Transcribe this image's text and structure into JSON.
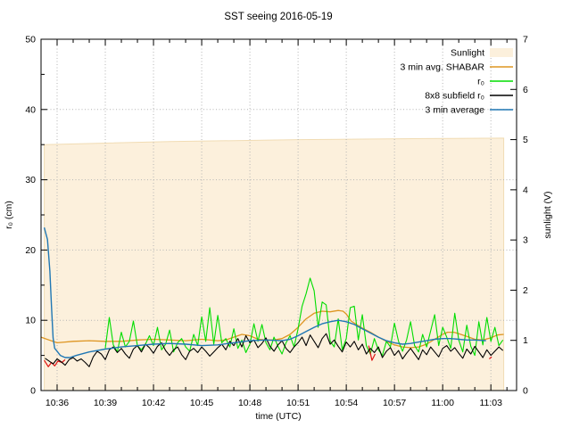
{
  "title": "SST seeing 2016-05-19",
  "chart_data": {
    "type": "line",
    "title": "SST seeing 2016-05-19",
    "xlabel": "time (UTC)",
    "ylabel_left": "r₀ (cm)",
    "ylabel_right": "sunlight (V)",
    "x_unit": "minutes after 10:35 UTC",
    "xlim": [
      0,
      29.6
    ],
    "ylim_left": [
      0,
      50
    ],
    "ylim_right": [
      0,
      7
    ],
    "yticks_left": [
      0,
      10,
      20,
      30,
      40,
      50
    ],
    "yticks_left_minor": [
      5,
      15,
      25,
      35,
      45
    ],
    "yticks_right": [
      0,
      1,
      2,
      3,
      4,
      5,
      6,
      7
    ],
    "x_ticks": [
      [
        1,
        "10:36"
      ],
      [
        4,
        "10:39"
      ],
      [
        7,
        "10:42"
      ],
      [
        10,
        "10:45"
      ],
      [
        13,
        "10:48"
      ],
      [
        16,
        "10:51"
      ],
      [
        19,
        "10:54"
      ],
      [
        22,
        "10:57"
      ],
      [
        25,
        "11:00"
      ],
      [
        28,
        "11:03"
      ]
    ],
    "grid": {
      "horizontal_at_left_ticks": [
        10,
        20,
        30,
        40
      ],
      "vertical_at_major_x": true
    },
    "colors": {
      "sunlight_fill": "#fcf0dc",
      "sunlight_edge": "#f1dcb4",
      "shabar": "#de9521",
      "r0": "#00dd00",
      "subfield": "#000000",
      "avg3min": "#1f77b4",
      "red_marks": "#e01212",
      "grid": "#b4b4b4",
      "axis": "#000000"
    },
    "legend": [
      {
        "label": "Sunlight",
        "type": "fill",
        "color_key": "sunlight_fill"
      },
      {
        "label": "3 min avg. SHABAR",
        "type": "line",
        "color_key": "shabar"
      },
      {
        "label": "r₀",
        "type": "line",
        "color_key": "r0"
      },
      {
        "label": "8x8 subfield r₀",
        "type": "line",
        "color_key": "subfield"
      },
      {
        "label": "3 min average",
        "type": "line",
        "color_key": "avg3min"
      }
    ],
    "series": {
      "sunlight": {
        "name": "Sunlight",
        "axis": "right",
        "style": "filled-area",
        "points": [
          [
            0.2,
            4.9
          ],
          [
            4,
            4.93
          ],
          [
            8,
            4.96
          ],
          [
            12,
            4.98
          ],
          [
            16,
            5.0
          ],
          [
            20,
            5.01
          ],
          [
            24,
            5.02
          ],
          [
            28.8,
            5.03
          ]
        ]
      },
      "shabar_avg": {
        "name": "3 min avg. SHABAR",
        "axis": "left",
        "style": "line",
        "points": [
          [
            0,
            7.6
          ],
          [
            0.5,
            7.2
          ],
          [
            1,
            6.8
          ],
          [
            1.5,
            6.9
          ],
          [
            2,
            7.0
          ],
          [
            3,
            7.1
          ],
          [
            4,
            7.0
          ],
          [
            5,
            7.0
          ],
          [
            6,
            7.2
          ],
          [
            7,
            7.3
          ],
          [
            8,
            7.2
          ],
          [
            9,
            7.1
          ],
          [
            10,
            7.3
          ],
          [
            11,
            7.1
          ],
          [
            11.5,
            7.2
          ],
          [
            12,
            7.6
          ],
          [
            12.5,
            8.0
          ],
          [
            13,
            7.8
          ],
          [
            13.5,
            7.3
          ],
          [
            14,
            7.2
          ],
          [
            14.5,
            7.2
          ],
          [
            15,
            7.4
          ],
          [
            15.5,
            8.0
          ],
          [
            16,
            9.0
          ],
          [
            16.5,
            10.2
          ],
          [
            17,
            11.0
          ],
          [
            17.5,
            11.3
          ],
          [
            18,
            11.2
          ],
          [
            18.5,
            11.4
          ],
          [
            18.8,
            11.3
          ],
          [
            19,
            10.9
          ],
          [
            19.3,
            9.9
          ],
          [
            19.7,
            9.3
          ],
          [
            20,
            8.9
          ],
          [
            20.5,
            8.3
          ],
          [
            21,
            7.6
          ],
          [
            21.5,
            7.0
          ],
          [
            22,
            6.5
          ],
          [
            22.5,
            6.2
          ],
          [
            23,
            6.1
          ],
          [
            23.5,
            6.2
          ],
          [
            24,
            6.6
          ],
          [
            24.5,
            7.3
          ],
          [
            25,
            8.0
          ],
          [
            25.3,
            8.3
          ],
          [
            25.7,
            8.3
          ],
          [
            26,
            8.1
          ],
          [
            26.5,
            7.7
          ],
          [
            27,
            7.3
          ],
          [
            27.5,
            7.2
          ],
          [
            28,
            7.5
          ],
          [
            28.4,
            7.9
          ],
          [
            28.8,
            8.0
          ]
        ]
      },
      "r0": {
        "name": "r₀",
        "axis": "left",
        "style": "line",
        "t_start": 4.0,
        "t_step": 0.25,
        "values": [
          6.0,
          10.4,
          6.5,
          5.5,
          8.3,
          6.2,
          7.0,
          9.9,
          6.4,
          5.8,
          6.6,
          7.8,
          6.4,
          9.0,
          5.8,
          6.6,
          8.6,
          5.5,
          6.8,
          7.4,
          6.2,
          5.6,
          8.0,
          6.4,
          10.5,
          7.0,
          11.8,
          6.6,
          10.7,
          6.8,
          7.4,
          6.2,
          8.8,
          6.0,
          7.2,
          5.4,
          6.6,
          9.5,
          7.0,
          9.4,
          6.8,
          5.8,
          7.6,
          6.3,
          5.2,
          6.8,
          7.8,
          6.2,
          8.8,
          12.0,
          13.8,
          16.0,
          14.2,
          9.0,
          12.6,
          12.2,
          7.0,
          6.2,
          10.2,
          5.8,
          7.4,
          11.8,
          12.0,
          7.2,
          10.8,
          6.4,
          5.2,
          7.4,
          5.8,
          5.0,
          7.0,
          6.2,
          9.6,
          7.0,
          5.6,
          7.2,
          9.8,
          6.4,
          5.5,
          8.0,
          6.2,
          8.5,
          10.8,
          6.4,
          9.0,
          7.6,
          6.0,
          11.0,
          7.2,
          5.5,
          9.3,
          6.3,
          5.0,
          9.8,
          6.5,
          10.4,
          7.0,
          9.0,
          6.4,
          7.2
        ]
      },
      "r0_8x8": {
        "name": "8x8 subfield r₀",
        "axis": "left",
        "style": "line",
        "t_start": 0.25,
        "t_step": 0.25,
        "values": [
          4.6,
          4.2,
          3.8,
          4.5,
          4.1,
          3.6,
          4.4,
          4.7,
          4.2,
          4.5,
          4.0,
          3.4,
          4.8,
          5.6,
          5.2,
          4.4,
          5.8,
          6.2,
          5.4,
          6.0,
          5.2,
          4.6,
          5.9,
          6.4,
          5.5,
          6.6,
          6.1,
          5.3,
          6.3,
          6.8,
          5.7,
          5.0,
          5.8,
          6.2,
          5.1,
          4.4,
          5.6,
          6.0,
          5.4,
          6.2,
          5.6,
          4.9,
          5.5,
          6.1,
          6.6,
          5.8,
          7.0,
          6.4,
          7.4,
          6.2,
          7.8,
          6.8,
          7.2,
          6.1,
          6.7,
          7.5,
          6.3,
          5.6,
          6.5,
          7.1,
          6.0,
          5.4,
          6.2,
          6.8,
          7.6,
          6.4,
          7.9,
          7.0,
          6.1,
          7.4,
          8.1,
          6.6,
          7.2,
          6.3,
          5.5,
          6.9,
          6.2,
          7.0,
          5.8,
          6.6,
          5.2,
          6.0,
          5.4,
          6.2,
          4.7,
          5.6,
          6.1,
          5.0,
          5.7,
          4.5,
          5.3,
          6.0,
          5.2,
          4.4,
          5.8,
          5.1,
          6.2,
          5.5,
          4.8,
          6.0,
          6.4,
          5.6,
          6.1,
          5.3,
          4.6,
          5.9,
          5.2,
          6.3,
          5.5,
          4.7,
          5.8,
          5.0,
          5.6,
          6.2,
          5.7
        ]
      },
      "avg3min": {
        "name": "3 min average",
        "axis": "left",
        "style": "line",
        "points": [
          [
            0.2,
            23.2
          ],
          [
            0.4,
            21.5
          ],
          [
            0.55,
            17.0
          ],
          [
            0.65,
            12.0
          ],
          [
            0.75,
            7.5
          ],
          [
            0.85,
            6.0
          ],
          [
            1.0,
            5.6
          ],
          [
            1.2,
            5.0
          ],
          [
            1.5,
            4.7
          ],
          [
            1.8,
            4.7
          ],
          [
            2.2,
            5.0
          ],
          [
            3,
            5.5
          ],
          [
            4,
            5.9
          ],
          [
            5,
            6.2
          ],
          [
            6,
            6.4
          ],
          [
            7,
            6.6
          ],
          [
            8,
            6.7
          ],
          [
            9,
            6.6
          ],
          [
            10,
            6.4
          ],
          [
            11,
            6.5
          ],
          [
            12,
            6.8
          ],
          [
            13,
            7.1
          ],
          [
            14,
            7.2
          ],
          [
            15,
            7.1
          ],
          [
            15.5,
            7.3
          ],
          [
            16,
            7.8
          ],
          [
            16.5,
            8.4
          ],
          [
            17,
            9.0
          ],
          [
            17.5,
            9.5
          ],
          [
            18,
            9.8
          ],
          [
            18.5,
            10.0
          ],
          [
            19,
            9.8
          ],
          [
            19.5,
            9.4
          ],
          [
            20,
            8.8
          ],
          [
            20.5,
            8.2
          ],
          [
            21,
            7.6
          ],
          [
            21.5,
            7.1
          ],
          [
            22,
            6.8
          ],
          [
            22.5,
            6.6
          ],
          [
            23,
            6.7
          ],
          [
            23.5,
            6.9
          ],
          [
            24,
            7.1
          ],
          [
            24.5,
            7.3
          ],
          [
            25,
            7.4
          ],
          [
            25.5,
            7.4
          ],
          [
            26,
            7.3
          ],
          [
            26.5,
            7.2
          ],
          [
            27,
            7.2
          ],
          [
            27.7,
            7.1
          ]
        ]
      },
      "red_marks": {
        "name": "red marks (unlabelled)",
        "axis": "left",
        "style": "line-segments",
        "segments": [
          [
            [
              0.2,
              4.3
            ],
            [
              0.45,
              3.4
            ],
            [
              0.65,
              4.0
            ],
            [
              0.85,
              3.5
            ],
            [
              1.05,
              4.2
            ],
            [
              1.3,
              4.0
            ],
            [
              1.5,
              4.4
            ]
          ],
          [
            [
              20.4,
              6.4
            ],
            [
              20.6,
              4.3
            ],
            [
              20.8,
              5.2
            ]
          ],
          [
            [
              27.9,
              4.5
            ],
            [
              28.05,
              4.8
            ]
          ]
        ]
      }
    }
  }
}
